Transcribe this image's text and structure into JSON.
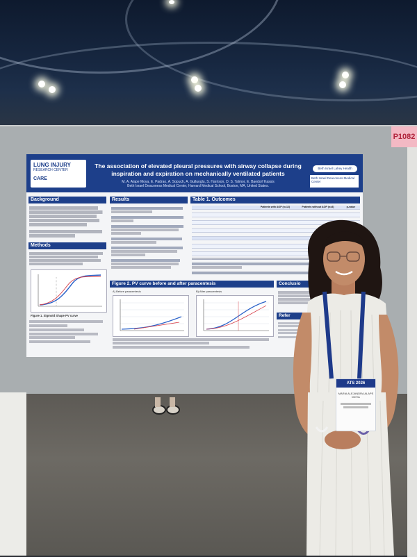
{
  "scene": {
    "booth_number": "P1082",
    "poster": {
      "logo": {
        "line1": "LUNG INJURY",
        "line2": "RESEARCH CENTER",
        "line3": "CARE"
      },
      "title": "The association of elevated pleural pressures with airway collapse during inspiration and expiration on mechanically ventilated patients",
      "authors": "M. A. Alape Moya, E. Padrao, A. Sopuch, A. Gulluoglu, S. Harrison, D. S. Talmor, E. Baedorf Kassis",
      "affiliation": "Beth Israel Deaconess Medical Center, Harvard Medical School, Boston, MA, United States.",
      "bidmc_label": "Beth Israel Deaconess Medical Center",
      "bidmc_top": "Beth Israel Lahey Health",
      "sections": {
        "background": "Background",
        "methods": "Methods",
        "results": "Results",
        "table1": "Table 1. Outcomes",
        "figure2": "Figure 2. PV curve before and after paracentesis",
        "conclusion": "Conclusio",
        "references": "Refer"
      },
      "figure1_caption": "Figure 1. Sigmoid Shape PV curve",
      "figure2_before": "A) Before paracentesis",
      "figure2_after": "B) After paracentesis",
      "results_col_1": "Patients with AOP (n=12)",
      "results_col_2": "Patients without AOP (n=8)",
      "results_col_3": "p-value"
    },
    "badge": {
      "conference": "ATS 2026",
      "name": "MARIA ALEJANDRA ALAPE MOYA"
    }
  }
}
